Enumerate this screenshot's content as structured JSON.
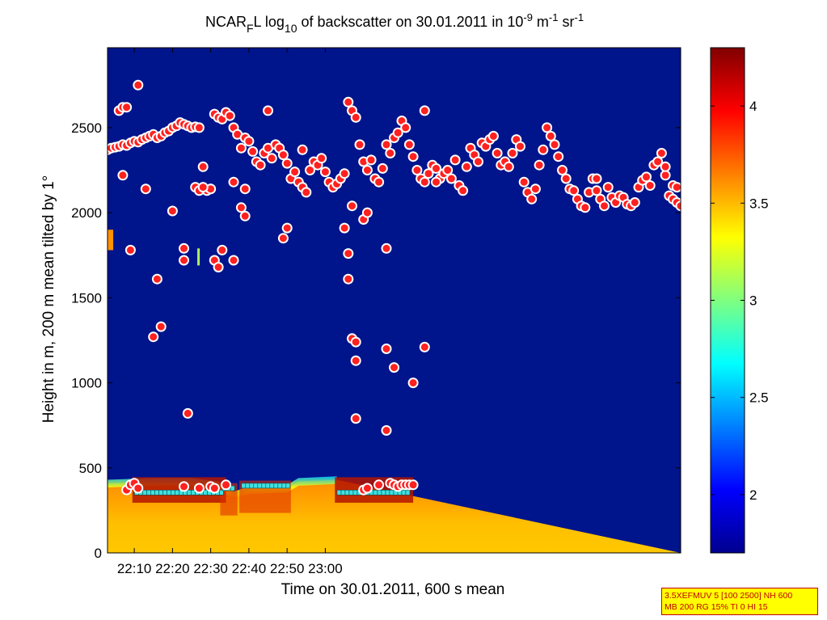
{
  "chart_data": {
    "type": "heatmap",
    "title": {
      "prefix": "NCAR",
      "prefix_sub": "F",
      "l": "L log",
      "log_sub": "10",
      "mid": " of backscatter on 30.01.2011 in 10",
      "exp1": "-9",
      "unit_m": " m",
      "exp2": "-1",
      "unit_sr": " sr",
      "exp3": "-1"
    },
    "xlabel": "Time on 30.01.2011, 600 s mean",
    "ylabel": "Height in m, 200 m mean tilted by 1°",
    "x_range_min": [
      2163,
      2313
    ],
    "y_range": [
      0,
      2970
    ],
    "x_ticks": [
      {
        "min": 2170,
        "label": "22:10"
      },
      {
        "min": 2180,
        "label": "22:20"
      },
      {
        "min": 2190,
        "label": "22:30"
      },
      {
        "min": 2200,
        "label": "22:40"
      },
      {
        "min": 2210,
        "label": "22:50"
      },
      {
        "min": 2220,
        "label": "23:00"
      }
    ],
    "y_ticks": [
      {
        "v": 0,
        "label": "0"
      },
      {
        "v": 500,
        "label": "500"
      },
      {
        "v": 1000,
        "label": "1000"
      },
      {
        "v": 1500,
        "label": "1500"
      },
      {
        "v": 2000,
        "label": "2000"
      },
      {
        "v": 2500,
        "label": "2500"
      }
    ],
    "colorbar": {
      "range": [
        1.7,
        4.3
      ],
      "ticks": [
        {
          "v": 2,
          "label": "2"
        },
        {
          "v": 2.5,
          "label": "2.5"
        },
        {
          "v": 3,
          "label": "3"
        },
        {
          "v": 3.5,
          "label": "3.5"
        },
        {
          "v": 4,
          "label": "4"
        }
      ]
    },
    "background_level": 1.75,
    "boundary_layer": [
      {
        "t": 2163,
        "top": 410
      },
      {
        "t": 2175,
        "top": 420
      },
      {
        "t": 2185,
        "top": 420
      },
      {
        "t": 2192,
        "top": 400
      },
      {
        "t": 2196,
        "top": 340
      },
      {
        "t": 2200,
        "top": 370
      },
      {
        "t": 2210,
        "top": 380
      },
      {
        "t": 2213,
        "top": 420
      },
      {
        "t": 2223,
        "top": 430
      }
    ],
    "cloud_top_dots_t_h": [
      [
        2163,
        2370
      ],
      [
        2164,
        2380
      ],
      [
        2165,
        2385
      ],
      [
        2166,
        2390
      ],
      [
        2167,
        2400
      ],
      [
        2168,
        2395
      ],
      [
        2169,
        2410
      ],
      [
        2170,
        2420
      ],
      [
        2171,
        2415
      ],
      [
        2172,
        2430
      ],
      [
        2173,
        2440
      ],
      [
        2174,
        2450
      ],
      [
        2175,
        2460
      ],
      [
        2176,
        2440
      ],
      [
        2177,
        2450
      ],
      [
        2178,
        2470
      ],
      [
        2179,
        2480
      ],
      [
        2180,
        2500
      ],
      [
        2181,
        2510
      ],
      [
        2182,
        2530
      ],
      [
        2183,
        2520
      ],
      [
        2184,
        2510
      ],
      [
        2185,
        2500
      ],
      [
        2186,
        2505
      ],
      [
        2187,
        2500
      ],
      [
        2166,
        2600
      ],
      [
        2167,
        2620
      ],
      [
        2168,
        2620
      ],
      [
        2171,
        2750
      ],
      [
        2188,
        2270
      ],
      [
        2189,
        2130
      ],
      [
        2190,
        2140
      ],
      [
        2191,
        2580
      ],
      [
        2192,
        2560
      ],
      [
        2193,
        2550
      ],
      [
        2194,
        2590
      ],
      [
        2195,
        2570
      ],
      [
        2196,
        2500
      ],
      [
        2197,
        2460
      ],
      [
        2198,
        2380
      ],
      [
        2199,
        2440
      ],
      [
        2200,
        2420
      ],
      [
        2201,
        2360
      ],
      [
        2202,
        2300
      ],
      [
        2203,
        2280
      ],
      [
        2204,
        2350
      ],
      [
        2205,
        2380
      ],
      [
        2206,
        2320
      ],
      [
        2207,
        2400
      ],
      [
        2208,
        2380
      ],
      [
        2209,
        2340
      ],
      [
        2210,
        2290
      ],
      [
        2211,
        2200
      ],
      [
        2212,
        2240
      ],
      [
        2213,
        2180
      ],
      [
        2214,
        2150
      ],
      [
        2215,
        2120
      ],
      [
        2216,
        2250
      ],
      [
        2217,
        2300
      ],
      [
        2218,
        2280
      ],
      [
        2219,
        2320
      ],
      [
        2220,
        2240
      ],
      [
        2221,
        2180
      ],
      [
        2222,
        2150
      ],
      [
        2223,
        2170
      ],
      [
        2224,
        2200
      ],
      [
        2225,
        2230
      ],
      [
        2226,
        2650
      ],
      [
        2227,
        2600
      ],
      [
        2228,
        2560
      ],
      [
        2229,
        2400
      ],
      [
        2230,
        2300
      ],
      [
        2231,
        2250
      ],
      [
        2232,
        2310
      ],
      [
        2233,
        2200
      ],
      [
        2234,
        2180
      ],
      [
        2235,
        2260
      ],
      [
        2236,
        2400
      ],
      [
        2237,
        2350
      ],
      [
        2238,
        2440
      ],
      [
        2239,
        2470
      ],
      [
        2240,
        2540
      ],
      [
        2241,
        2500
      ],
      [
        2242,
        2400
      ],
      [
        2243,
        2330
      ],
      [
        2244,
        2250
      ],
      [
        2245,
        2200
      ],
      [
        2246,
        2180
      ],
      [
        2247,
        2230
      ],
      [
        2248,
        2280
      ],
      [
        2249,
        2260
      ],
      [
        2250,
        2200
      ],
      [
        2251,
        2230
      ],
      [
        2252,
        2250
      ],
      [
        2253,
        2200
      ],
      [
        2254,
        2310
      ],
      [
        2255,
        2160
      ],
      [
        2256,
        2130
      ],
      [
        2257,
        2270
      ],
      [
        2258,
        2380
      ],
      [
        2259,
        2340
      ],
      [
        2260,
        2300
      ],
      [
        2261,
        2410
      ],
      [
        2262,
        2390
      ],
      [
        2263,
        2430
      ],
      [
        2264,
        2450
      ],
      [
        2265,
        2350
      ],
      [
        2266,
        2280
      ],
      [
        2267,
        2300
      ],
      [
        2268,
        2270
      ],
      [
        2269,
        2350
      ],
      [
        2270,
        2430
      ],
      [
        2271,
        2390
      ],
      [
        2272,
        2180
      ],
      [
        2273,
        2120
      ],
      [
        2274,
        2080
      ],
      [
        2275,
        2140
      ],
      [
        2276,
        2280
      ],
      [
        2277,
        2370
      ],
      [
        2278,
        2500
      ],
      [
        2279,
        2450
      ],
      [
        2280,
        2400
      ],
      [
        2281,
        2330
      ],
      [
        2282,
        2250
      ],
      [
        2283,
        2200
      ],
      [
        2284,
        2140
      ],
      [
        2285,
        2130
      ],
      [
        2286,
        2080
      ],
      [
        2287,
        2040
      ],
      [
        2288,
        2030
      ],
      [
        2289,
        2120
      ],
      [
        2290,
        2200
      ],
      [
        2291,
        2130
      ],
      [
        2292,
        2080
      ],
      [
        2293,
        2040
      ],
      [
        2294,
        2150
      ],
      [
        2295,
        2090
      ],
      [
        2296,
        2060
      ],
      [
        2297,
        2100
      ],
      [
        2298,
        2090
      ],
      [
        2299,
        2050
      ],
      [
        2300,
        2040
      ],
      [
        2301,
        2060
      ],
      [
        2302,
        2150
      ],
      [
        2303,
        2190
      ],
      [
        2304,
        2210
      ],
      [
        2305,
        2160
      ],
      [
        2306,
        2280
      ],
      [
        2307,
        2300
      ],
      [
        2308,
        2350
      ],
      [
        2309,
        2220
      ],
      [
        2310,
        2100
      ],
      [
        2311,
        2080
      ],
      [
        2312,
        2060
      ],
      [
        2313,
        2040
      ],
      [
        2205,
        2600
      ],
      [
        2214,
        2370
      ],
      [
        2227,
        2040
      ],
      [
        2186,
        2150
      ],
      [
        2190,
        2140
      ],
      [
        2196,
        2180
      ],
      [
        2199,
        2140
      ],
      [
        2246,
        2600
      ],
      [
        2249,
        2180
      ],
      [
        2291,
        2200
      ],
      [
        2309,
        2270
      ],
      [
        2311,
        2160
      ],
      [
        2312,
        2150
      ]
    ],
    "isolated_dots_t_h": [
      [
        2167,
        2220
      ],
      [
        2169,
        1780
      ],
      [
        2173,
        2140
      ],
      [
        2175,
        1270
      ],
      [
        2177,
        1330
      ],
      [
        2176,
        1610
      ],
      [
        2180,
        2010
      ],
      [
        2183,
        1720
      ],
      [
        2183,
        1790
      ],
      [
        2184,
        820
      ],
      [
        2187,
        2130
      ],
      [
        2188,
        2150
      ],
      [
        2191,
        1720
      ],
      [
        2192,
        1680
      ],
      [
        2193,
        1780
      ],
      [
        2196,
        1720
      ],
      [
        2198,
        2030
      ],
      [
        2199,
        1980
      ],
      [
        2209,
        1850
      ],
      [
        2210,
        1910
      ],
      [
        2226,
        1760
      ],
      [
        2226,
        1610
      ],
      [
        2227,
        1260
      ],
      [
        2228,
        1130
      ],
      [
        2228,
        1240
      ],
      [
        2228,
        790
      ],
      [
        2230,
        1960
      ],
      [
        2231,
        2000
      ],
      [
        2236,
        1200
      ],
      [
        2236,
        1790
      ],
      [
        2236,
        720
      ],
      [
        2238,
        1090
      ],
      [
        2243,
        1000
      ],
      [
        2246,
        1210
      ],
      [
        2225,
        1910
      ]
    ],
    "bl_dots_t_h": [
      [
        2168,
        370
      ],
      [
        2169,
        400
      ],
      [
        2170,
        410
      ],
      [
        2171,
        380
      ],
      [
        2183,
        390
      ],
      [
        2187,
        380
      ],
      [
        2190,
        390
      ],
      [
        2191,
        380
      ],
      [
        2194,
        400
      ],
      [
        2230,
        370
      ],
      [
        2231,
        380
      ],
      [
        2234,
        400
      ],
      [
        2237,
        410
      ],
      [
        2238,
        400
      ],
      [
        2239,
        390
      ],
      [
        2240,
        400
      ],
      [
        2241,
        400
      ],
      [
        2242,
        400
      ],
      [
        2243,
        400
      ]
    ],
    "segments_squares": [
      {
        "t0": 2170.5,
        "t1": 2193.5,
        "h": 355
      },
      {
        "t0": 2193.5,
        "t1": 2196.5,
        "h": 380
      },
      {
        "t0": 2198.5,
        "t1": 2210.5,
        "h": 395
      },
      {
        "t0": 2223.5,
        "t1": 2242.5,
        "h": 355
      }
    ],
    "plume_blobs": [
      {
        "t0": 2163,
        "t1": 2164.5,
        "h0": 1780,
        "h1": 1900,
        "v": 3.6
      },
      {
        "t0": 2186.5,
        "t1": 2187.0,
        "h0": 1690,
        "h1": 1790,
        "v": 3.1
      }
    ]
  },
  "info_box": {
    "line1": "3.5XEFMUV 5 [100 2500] NH 600",
    "line2": "MB 200 RG 15% TI 0 HI 15"
  },
  "colors": {
    "background": "#00148c",
    "dot_fill": "#ff2020",
    "dot_ring": "#ffffff",
    "square": "#40e0e0"
  }
}
